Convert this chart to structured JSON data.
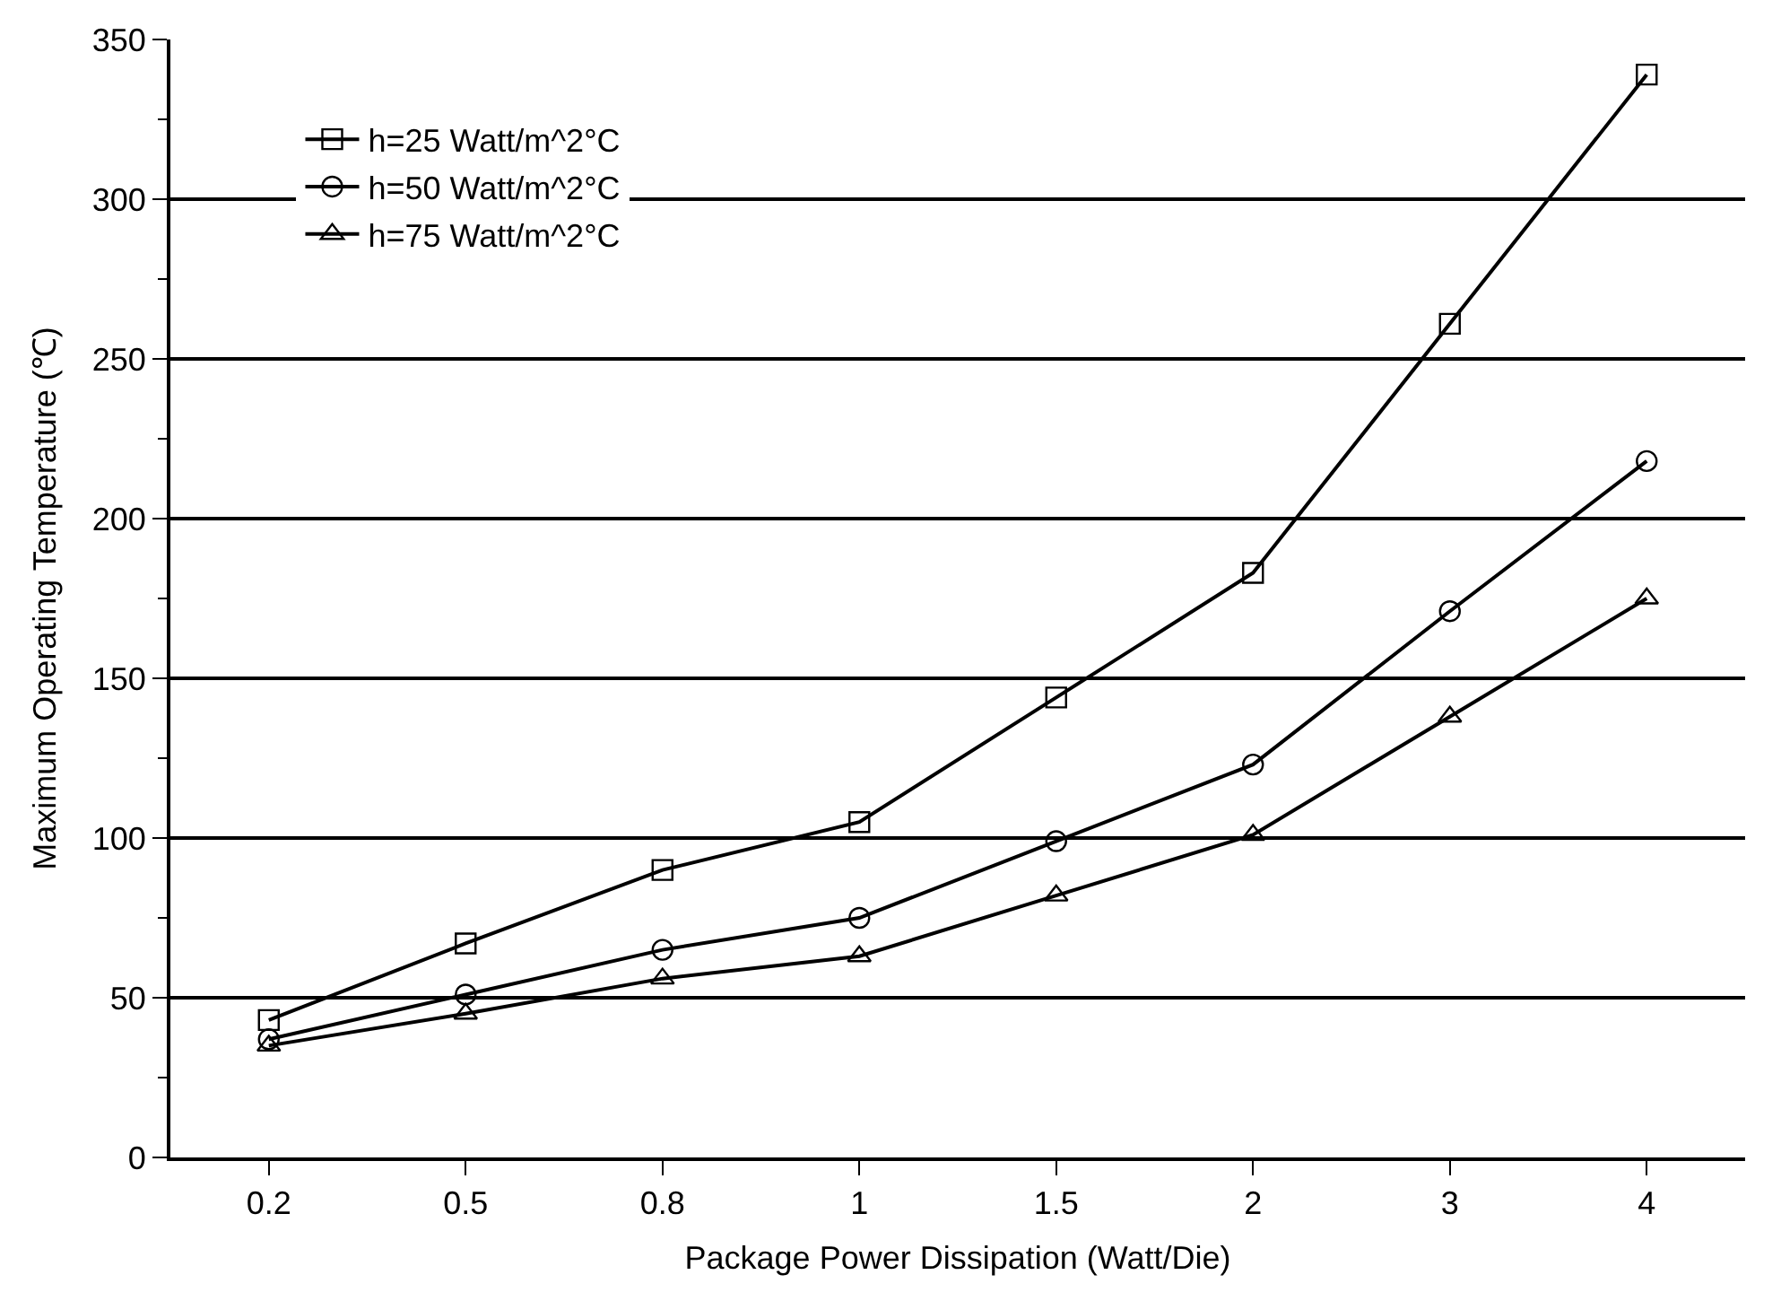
{
  "chart_data": {
    "type": "line",
    "xlabel": "Package Power Dissipation (Watt/Die)",
    "ylabel": "Maximum Operating Temperature (℃)",
    "categories": [
      "0.2",
      "0.5",
      "0.8",
      "1",
      "1.5",
      "2",
      "3",
      "4"
    ],
    "series": [
      {
        "name": "h=25 Watt/m^2°C",
        "color": "#000000",
        "marker": "square",
        "values": [
          43,
          67,
          90,
          105,
          144,
          183,
          261,
          339
        ]
      },
      {
        "name": "h=50 Watt/m^2°C",
        "color": "#000000",
        "marker": "circle",
        "values": [
          37,
          51,
          65,
          75,
          99,
          123,
          171,
          218
        ]
      },
      {
        "name": "h=75 Watt/m^2°C",
        "color": "#000000",
        "marker": "triangle",
        "values": [
          35,
          45,
          56,
          63,
          82,
          101,
          138,
          175
        ]
      }
    ],
    "ylim": [
      0,
      350
    ],
    "yticks": [
      0,
      {
        "value": 25,
        "label": null
      },
      50,
      {
        "value": 75,
        "label": null
      },
      100,
      {
        "value": 125,
        "label": null
      },
      150,
      {
        "value": 175,
        "label": null
      },
      200,
      {
        "value": 225,
        "label": null
      },
      250,
      {
        "value": 275,
        "label": null
      },
      300,
      {
        "value": 325,
        "label": null
      },
      350
    ],
    "grid": "y",
    "legend": "top left",
    "line_style": "solid"
  }
}
